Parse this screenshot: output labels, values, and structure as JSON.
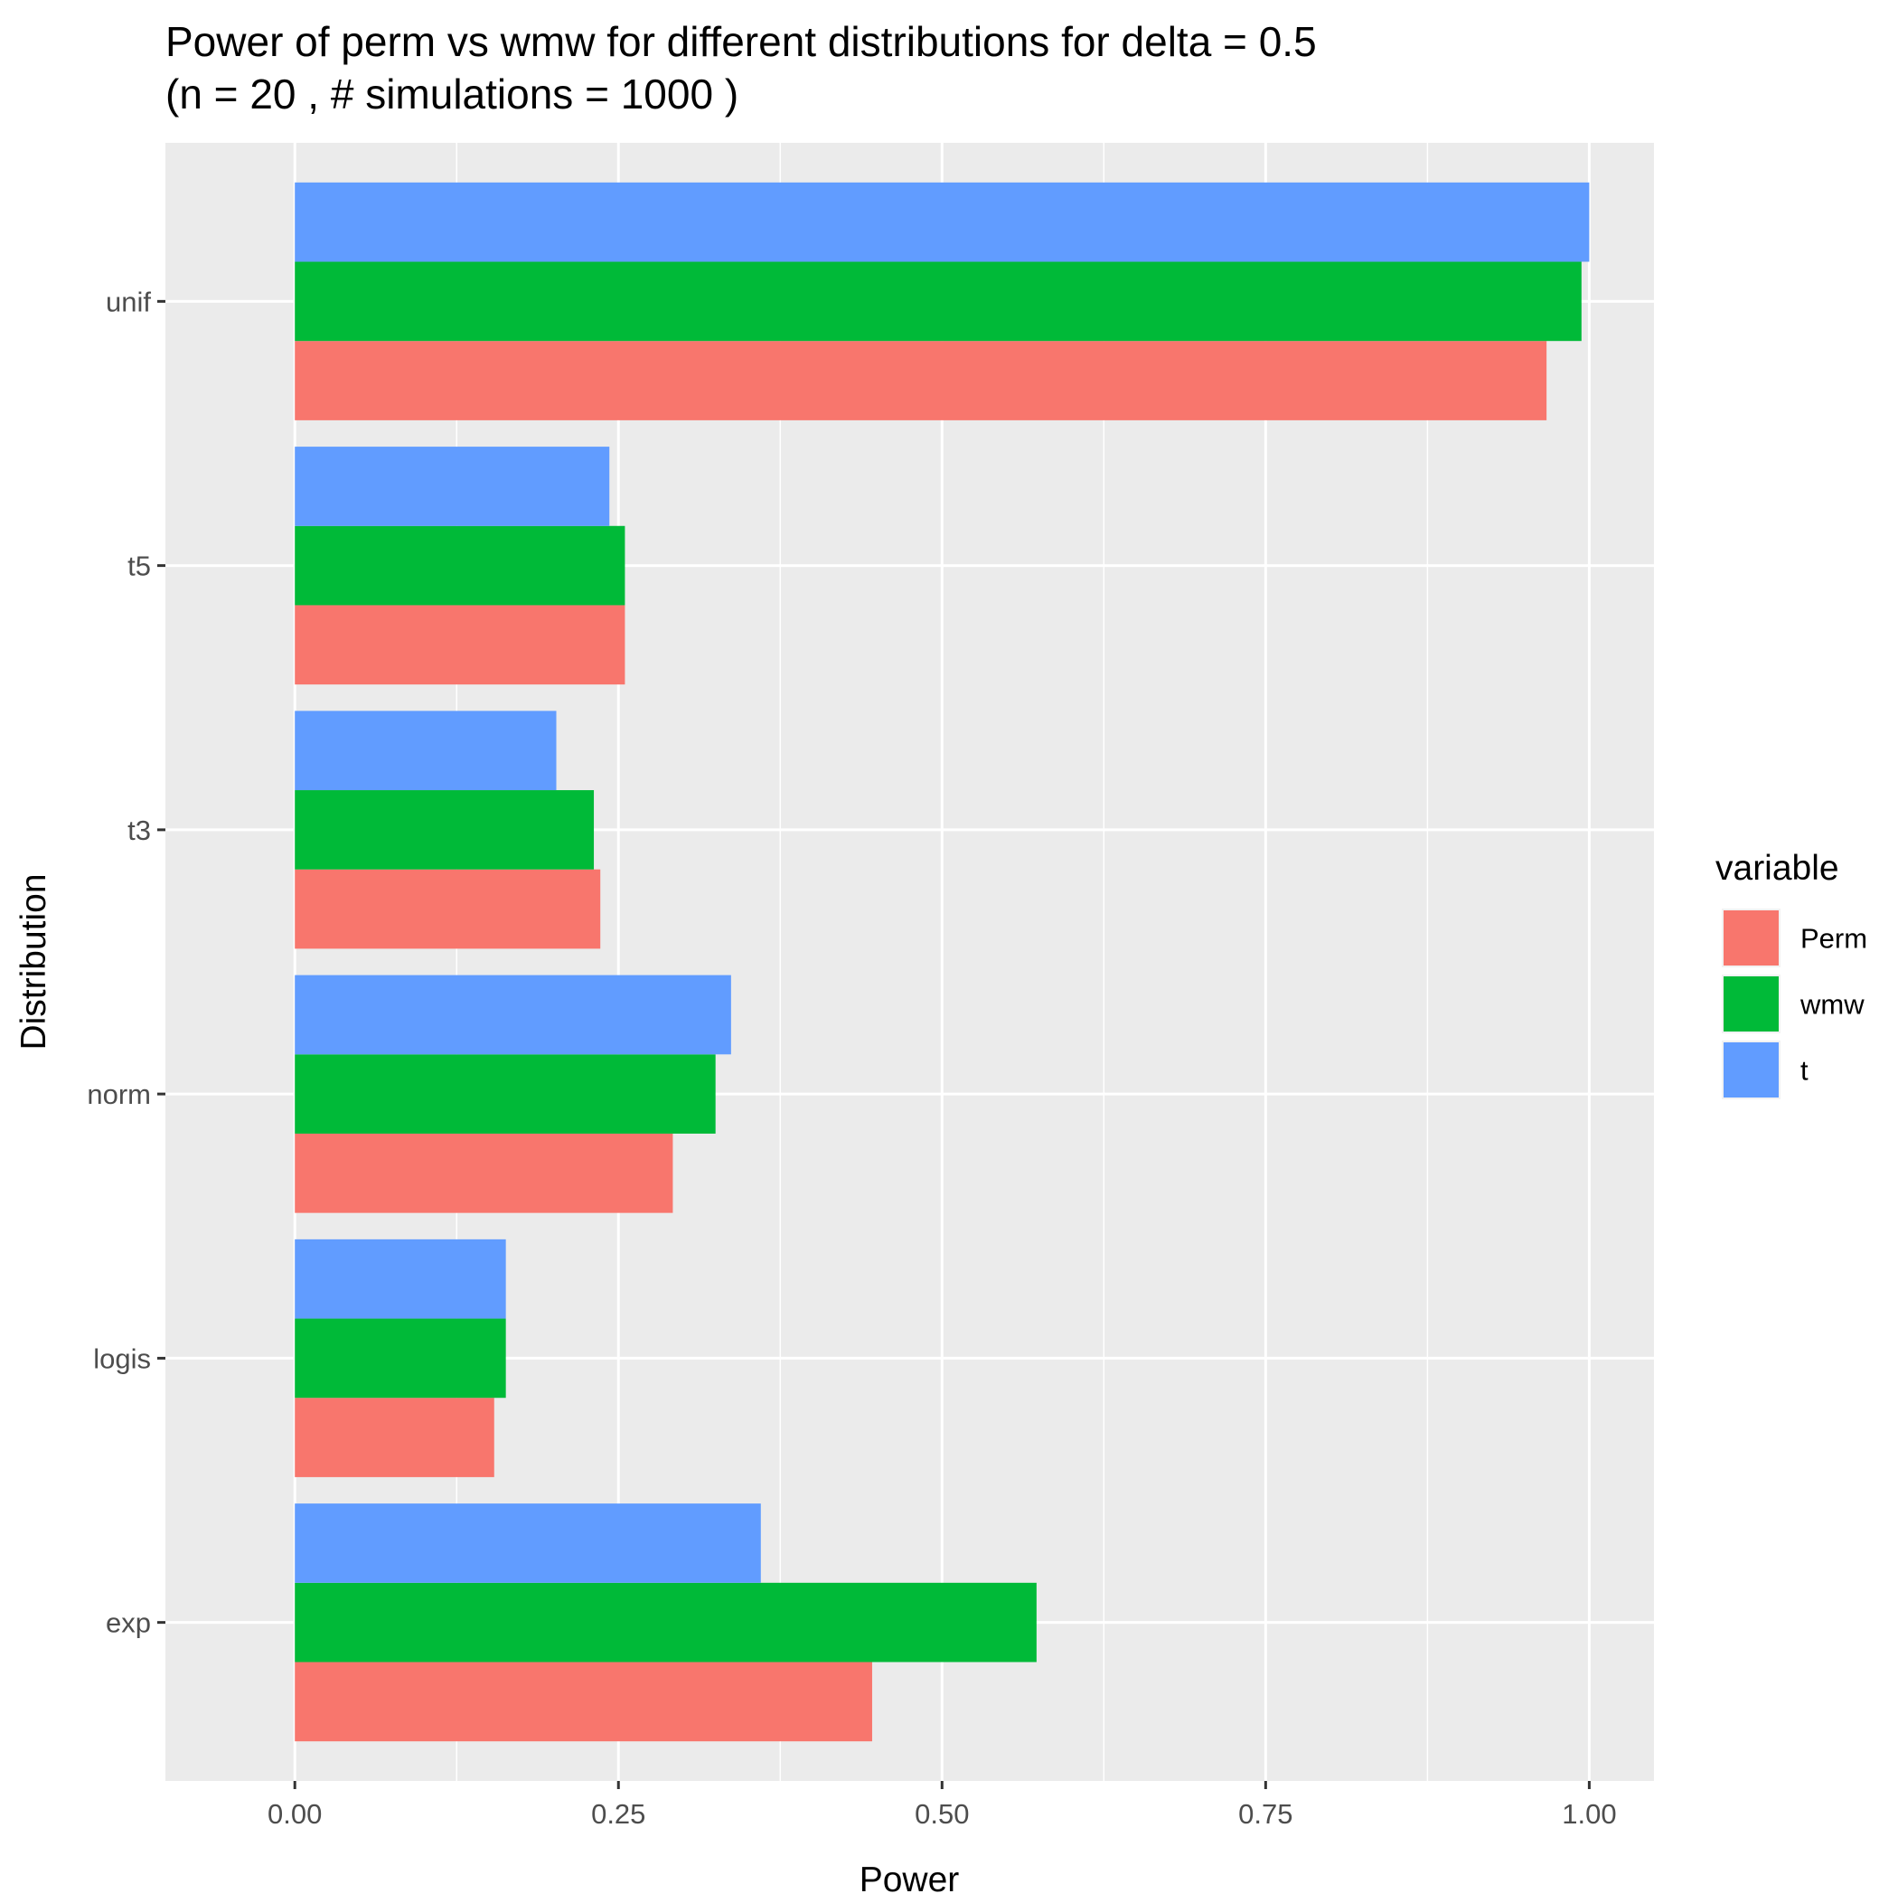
{
  "chart_data": {
    "type": "bar",
    "orientation": "horizontal",
    "title": "Power of perm vs wmw for different distributions for delta =  0.5",
    "subtitle": "(n = 20 , # simulations = 1000 )",
    "xlabel": "Power",
    "ylabel": "Distribution",
    "categories": [
      "exp",
      "logis",
      "norm",
      "t3",
      "t5",
      "unif"
    ],
    "xlim": [
      -0.1,
      1.05
    ],
    "x_ticks": [
      0,
      0.25,
      0.5,
      0.75,
      1
    ],
    "x_tick_labels": [
      "0.00",
      "0.25",
      "0.50",
      "0.75",
      "1.00"
    ],
    "grid": true,
    "legend_title": "variable",
    "legend_position": "right",
    "series": [
      {
        "name": "Perm",
        "color": "#F8766D",
        "values": [
          0.446,
          0.154,
          0.292,
          0.236,
          0.255,
          0.967
        ]
      },
      {
        "name": "wmw",
        "color": "#00BA38",
        "values": [
          0.573,
          0.163,
          0.325,
          0.231,
          0.255,
          0.994
        ]
      },
      {
        "name": "t",
        "color": "#619CFF",
        "values": [
          0.36,
          0.163,
          0.337,
          0.202,
          0.243,
          1.0
        ]
      }
    ]
  }
}
